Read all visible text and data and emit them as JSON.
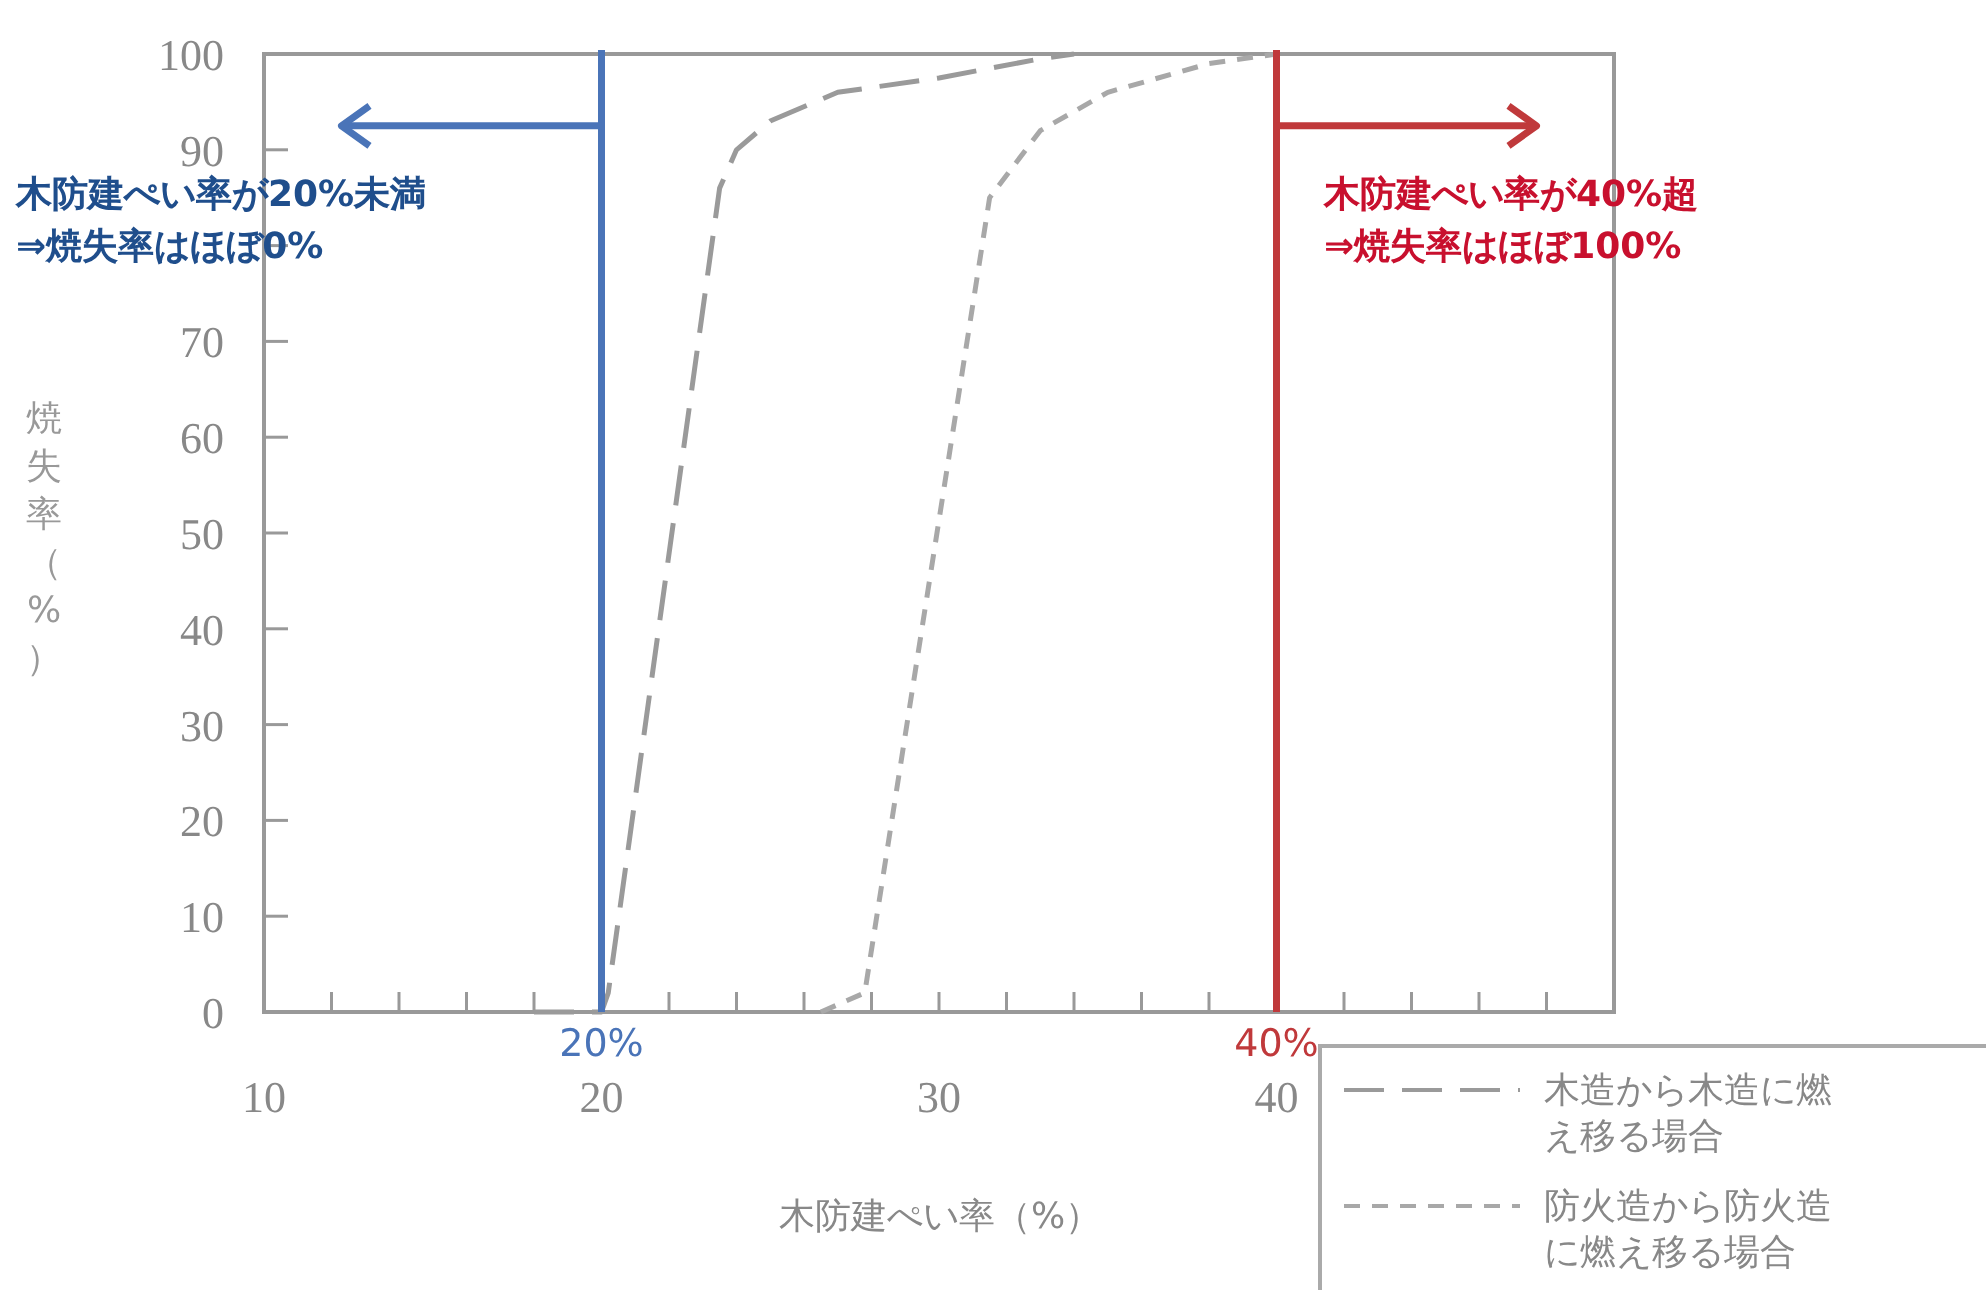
{
  "chart_data": {
    "type": "line",
    "xlabel": "木防建ぺい率（%）",
    "ylabel": "焼失率（%）",
    "xlim": [
      10,
      50
    ],
    "ylim": [
      0,
      100
    ],
    "xticks": [
      10,
      {
        "value": 12,
        "label": null
      },
      {
        "value": 14,
        "label": null
      },
      {
        "value": 16,
        "label": null
      },
      {
        "value": 18,
        "label": null
      },
      20,
      {
        "value": 22,
        "label": null
      },
      {
        "value": 24,
        "label": null
      },
      {
        "value": 26,
        "label": null
      },
      {
        "value": 28,
        "label": null
      },
      30,
      {
        "value": 32,
        "label": null
      },
      {
        "value": 34,
        "label": null
      },
      {
        "value": 36,
        "label": null
      },
      {
        "value": 38,
        "label": null
      },
      40,
      {
        "value": 42,
        "label": null
      },
      {
        "value": 44,
        "label": null
      },
      {
        "value": 46,
        "label": null
      },
      {
        "value": 48,
        "label": null
      }
    ],
    "yticks": [
      0,
      10,
      20,
      30,
      40,
      50,
      60,
      70,
      {
        "value": 80,
        "label": null
      },
      90,
      100
    ],
    "legend": "bottom right",
    "grid": false,
    "series": [
      {
        "name": "木造から木造に燃え移る場合",
        "color": "#9a9a9a",
        "line_style": "dashed",
        "x": [
          18,
          20,
          20.2,
          23.5,
          24,
          25,
          27,
          30,
          33,
          34
        ],
        "values": [
          0,
          0,
          2,
          86,
          90,
          93,
          96,
          97.5,
          99.5,
          100
        ]
      },
      {
        "name": "防火造から防火造に燃え移る場合",
        "color": "#a8a8a8",
        "line_style": "dashed",
        "x": [
          26.5,
          27.8,
          31.5,
          33,
          35,
          38,
          40
        ],
        "values": [
          0,
          2,
          85,
          92,
          96,
          99,
          100
        ]
      }
    ],
    "ref_lines": [
      {
        "axis": "x",
        "value": 20,
        "label": "20%",
        "color": "#4a74b8"
      },
      {
        "axis": "x",
        "value": 40,
        "label": "40%",
        "color": "#c0393b"
      }
    ],
    "annotations": [
      "木防建ぺい率が20%未満\n⇒焼失率はほぼ0%",
      "木防建ぺい率が40%超\n⇒焼失率はほぼ100%"
    ]
  }
}
